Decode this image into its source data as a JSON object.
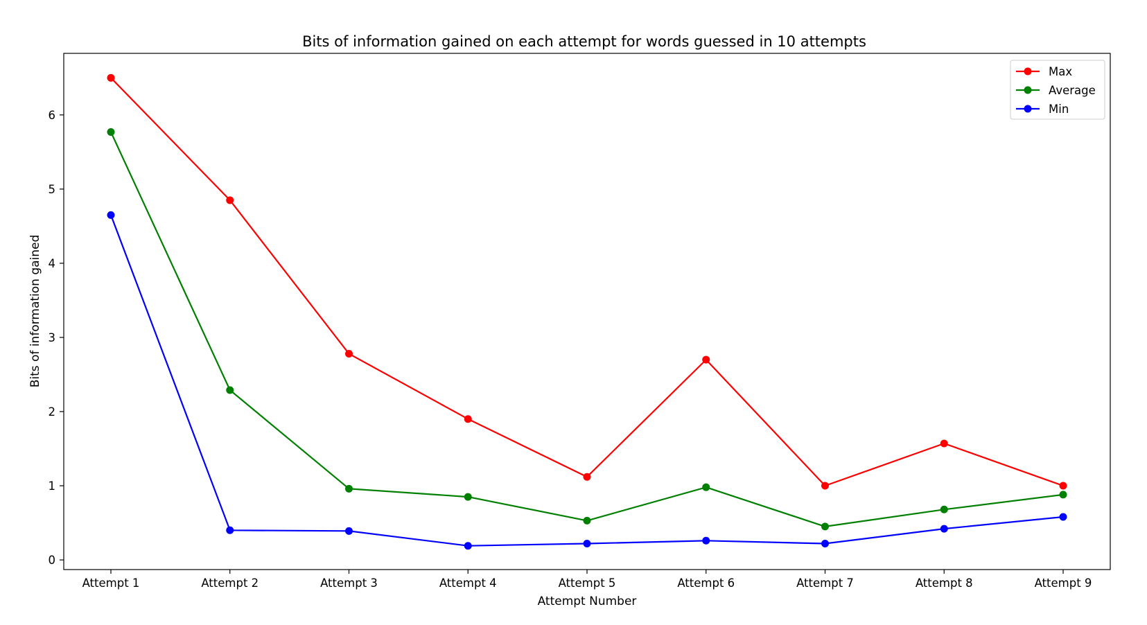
{
  "chart_data": {
    "type": "line",
    "title": "Bits of information gained on each attempt for words guessed in 10 attempts",
    "xlabel": "Attempt Number",
    "ylabel": "Bits of information gained",
    "categories": [
      "Attempt 1",
      "Attempt 2",
      "Attempt 3",
      "Attempt 4",
      "Attempt 5",
      "Attempt 6",
      "Attempt 7",
      "Attempt 8",
      "Attempt 9"
    ],
    "ylim": [
      -0.13,
      6.83
    ],
    "yticks": [
      0,
      1,
      2,
      3,
      4,
      5,
      6
    ],
    "grid": false,
    "legend_position": "top-right",
    "series": [
      {
        "name": "Max",
        "color": "#ff0000",
        "values": [
          6.5,
          4.85,
          2.78,
          1.9,
          1.12,
          2.7,
          1.0,
          1.57,
          1.0
        ]
      },
      {
        "name": "Average",
        "color": "#008000",
        "values": [
          5.77,
          2.29,
          0.96,
          0.85,
          0.53,
          0.98,
          0.45,
          0.68,
          0.88
        ]
      },
      {
        "name": "Min",
        "color": "#0000ff",
        "values": [
          4.65,
          0.4,
          0.39,
          0.19,
          0.22,
          0.26,
          0.22,
          0.42,
          0.58
        ]
      }
    ]
  }
}
